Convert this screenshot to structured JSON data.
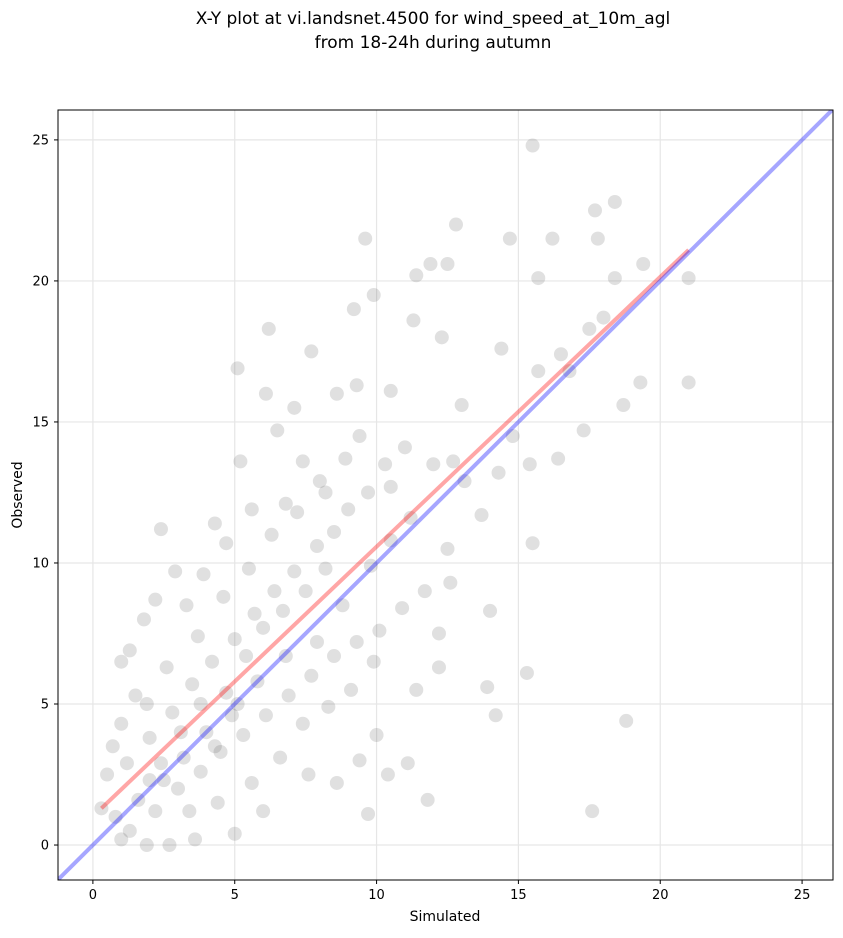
{
  "chart_data": {
    "type": "scatter",
    "title": [
      "X-Y plot at vi.landsnet.4500 for wind_speed_at_10m_agl",
      "from 18-24h during autumn"
    ],
    "x_label": "Simulated",
    "y_label": "Observed",
    "xlim": [
      -1.23,
      26.09
    ],
    "ylim": [
      -1.24,
      26.06
    ],
    "xticks": [
      0,
      5,
      10,
      15,
      20,
      25
    ],
    "yticks": [
      0,
      5,
      10,
      15,
      20,
      25
    ],
    "grid": true,
    "series": [
      {
        "type": "scatter",
        "color": "#555555",
        "x": [
          15.5,
          12.8,
          18.4,
          17.7,
          9.6,
          14.7,
          16.2,
          11.4,
          11.9,
          12.5,
          15.7,
          19.4,
          21,
          18.4,
          9.9,
          9.2,
          6.2,
          7.7,
          5.1,
          21,
          19.3,
          18.7,
          17.3,
          15.5,
          15.3,
          14.2,
          13.9,
          14.0,
          18.8,
          17.6,
          11.8,
          9.7,
          10.4,
          13.7,
          16.5,
          15.7,
          14.4,
          12.3,
          11.3,
          10.5,
          9.3,
          8.6,
          6.1,
          2.4,
          2.9,
          2.2,
          1.0,
          4.3,
          5.2,
          6.5,
          7.1,
          8.2,
          13.0,
          16.4,
          15.4,
          14.8,
          16.8,
          17.8,
          18.0,
          17.5,
          12.6,
          12.2,
          12.2,
          11.4,
          11.1,
          10.0,
          9.4,
          8.6,
          7.6,
          6.0,
          5.0,
          3.6,
          2.7,
          1.9,
          1.0,
          0.3,
          0.5,
          0.7,
          1.0,
          1.5,
          1.3,
          1.8,
          3.3,
          3.9,
          4.7,
          5.6,
          6.8,
          7.4,
          8.9,
          9.4,
          10.3,
          11.0,
          12.0,
          12.7,
          13.1,
          14.3,
          11.2,
          10.5,
          9.8,
          8.8,
          7.9,
          6.8,
          5.8,
          4.9,
          4.0,
          3.2,
          2.5,
          1.6,
          1.2,
          2.0,
          2.8,
          3.5,
          4.2,
          5.0,
          5.7,
          6.4,
          7.1,
          7.9,
          8.5,
          9.0,
          9.7,
          10.5,
          2.2,
          3.0,
          3.8,
          4.5,
          5.3,
          6.1,
          6.9,
          7.7,
          8.5,
          9.3,
          10.1,
          10.9,
          11.7,
          12.5,
          4.6,
          3.7,
          2.6,
          1.9,
          5.5,
          6.3,
          7.2,
          8.0,
          3.4,
          4.4,
          5.6,
          6.6,
          7.4,
          8.3,
          9.1,
          9.9,
          0.8,
          1.3,
          2.4,
          3.1,
          4.7,
          5.4,
          6.0,
          6.7,
          7.5,
          8.2,
          3.8,
          4.3,
          5.1,
          2.0
        ],
        "values": [
          24.8,
          22,
          22.8,
          22.5,
          21.5,
          21.5,
          21.5,
          20.2,
          20.6,
          20.6,
          20.1,
          20.6,
          20.1,
          20.1,
          19.5,
          19,
          18.3,
          17.5,
          16.9,
          16.4,
          16.4,
          15.6,
          14.7,
          10.7,
          6.1,
          4.6,
          5.6,
          8.3,
          4.4,
          1.2,
          1.6,
          1.1,
          2.5,
          11.7,
          17.4,
          16.8,
          17.6,
          18.0,
          18.6,
          16.1,
          16.3,
          16.0,
          16.0,
          11.2,
          9.7,
          8.7,
          6.5,
          11.4,
          13.6,
          14.7,
          15.5,
          12.5,
          15.6,
          13.7,
          13.5,
          14.5,
          16.8,
          21.5,
          18.7,
          18.3,
          9.3,
          7.5,
          6.3,
          5.5,
          2.9,
          3.9,
          3.0,
          2.2,
          2.5,
          1.2,
          0.4,
          0.2,
          0.0,
          0.0,
          0.2,
          1.3,
          2.5,
          3.5,
          4.3,
          5.3,
          6.9,
          8.0,
          8.5,
          9.6,
          10.7,
          11.9,
          12.1,
          13.6,
          13.7,
          14.5,
          13.5,
          14.1,
          13.5,
          13.6,
          12.9,
          13.2,
          11.6,
          10.8,
          9.9,
          8.5,
          7.2,
          6.7,
          5.8,
          4.6,
          4.0,
          3.1,
          2.3,
          1.6,
          2.9,
          3.8,
          4.7,
          5.7,
          6.5,
          7.3,
          8.2,
          9.0,
          9.7,
          10.6,
          11.1,
          11.9,
          12.5,
          12.7,
          1.2,
          2.0,
          2.6,
          3.3,
          3.9,
          4.6,
          5.3,
          6.0,
          6.7,
          7.2,
          7.6,
          8.4,
          9.0,
          10.5,
          8.8,
          7.4,
          6.3,
          5.0,
          9.8,
          11.0,
          11.8,
          12.9,
          1.2,
          1.5,
          2.2,
          3.1,
          4.3,
          4.9,
          5.5,
          6.5,
          1.0,
          0.5,
          2.9,
          4.0,
          5.4,
          6.7,
          7.7,
          8.3,
          9.0,
          9.8,
          5.0,
          3.5,
          5.0,
          2.3
        ]
      },
      {
        "type": "line",
        "color": "#ff0000",
        "x": [
          0.3,
          21.0
        ],
        "values": [
          1.3,
          21.1
        ]
      },
      {
        "type": "line",
        "color": "#0000ff",
        "x": [
          -1.23,
          26.09
        ],
        "values": [
          -1.23,
          26.09
        ]
      }
    ]
  }
}
